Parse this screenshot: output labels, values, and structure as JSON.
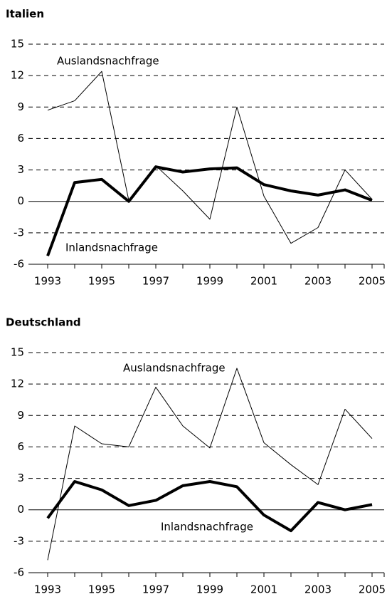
{
  "chart_data": [
    {
      "type": "line",
      "title": "Italien",
      "x": [
        1993,
        1994,
        1995,
        1996,
        1997,
        1998,
        1999,
        2000,
        2001,
        2002,
        2003,
        2004,
        2005
      ],
      "series": [
        {
          "name": "Auslandsnachfrage",
          "color": "#000000",
          "values": [
            8.7,
            9.6,
            12.4,
            0.1,
            3.4,
            1.0,
            -1.7,
            9.0,
            0.5,
            -4.0,
            -2.5,
            3.0,
            0.2
          ]
        },
        {
          "name": "Inlandsnachfrage",
          "color": "#000000",
          "values": [
            -5.2,
            1.8,
            2.1,
            0.0,
            3.3,
            2.8,
            3.1,
            3.2,
            1.6,
            1.0,
            0.6,
            1.1,
            0.1
          ]
        }
      ],
      "xlim": [
        1993,
        2005
      ],
      "xticks": [
        1993,
        1995,
        1997,
        1999,
        2001,
        2003,
        2005
      ],
      "ylim": [
        -6,
        15
      ],
      "yticks": [
        -6,
        -3,
        0,
        3,
        6,
        9,
        12,
        15
      ],
      "grid": true
    },
    {
      "type": "line",
      "title": "Deutschland",
      "x": [
        1993,
        1994,
        1995,
        1996,
        1997,
        1998,
        1999,
        2000,
        2001,
        2002,
        2003,
        2004,
        2005
      ],
      "series": [
        {
          "name": "Auslandsnachfrage",
          "color": "#000000",
          "values": [
            -4.8,
            8.0,
            6.3,
            6.0,
            11.7,
            8.0,
            5.9,
            13.5,
            6.4,
            4.3,
            2.4,
            9.6,
            6.8
          ]
        },
        {
          "name": "Inlandsnachfrage",
          "color": "#000000",
          "values": [
            -0.8,
            2.7,
            1.9,
            0.4,
            0.9,
            2.3,
            2.7,
            2.2,
            -0.5,
            -2.0,
            0.7,
            0.0,
            0.5
          ]
        }
      ],
      "xlim": [
        1993,
        2005
      ],
      "xticks": [
        1993,
        1995,
        1997,
        1999,
        2001,
        2003,
        2005
      ],
      "ylim": [
        -6,
        15
      ],
      "yticks": [
        -6,
        -3,
        0,
        3,
        6,
        9,
        12,
        15
      ],
      "grid": true
    }
  ]
}
